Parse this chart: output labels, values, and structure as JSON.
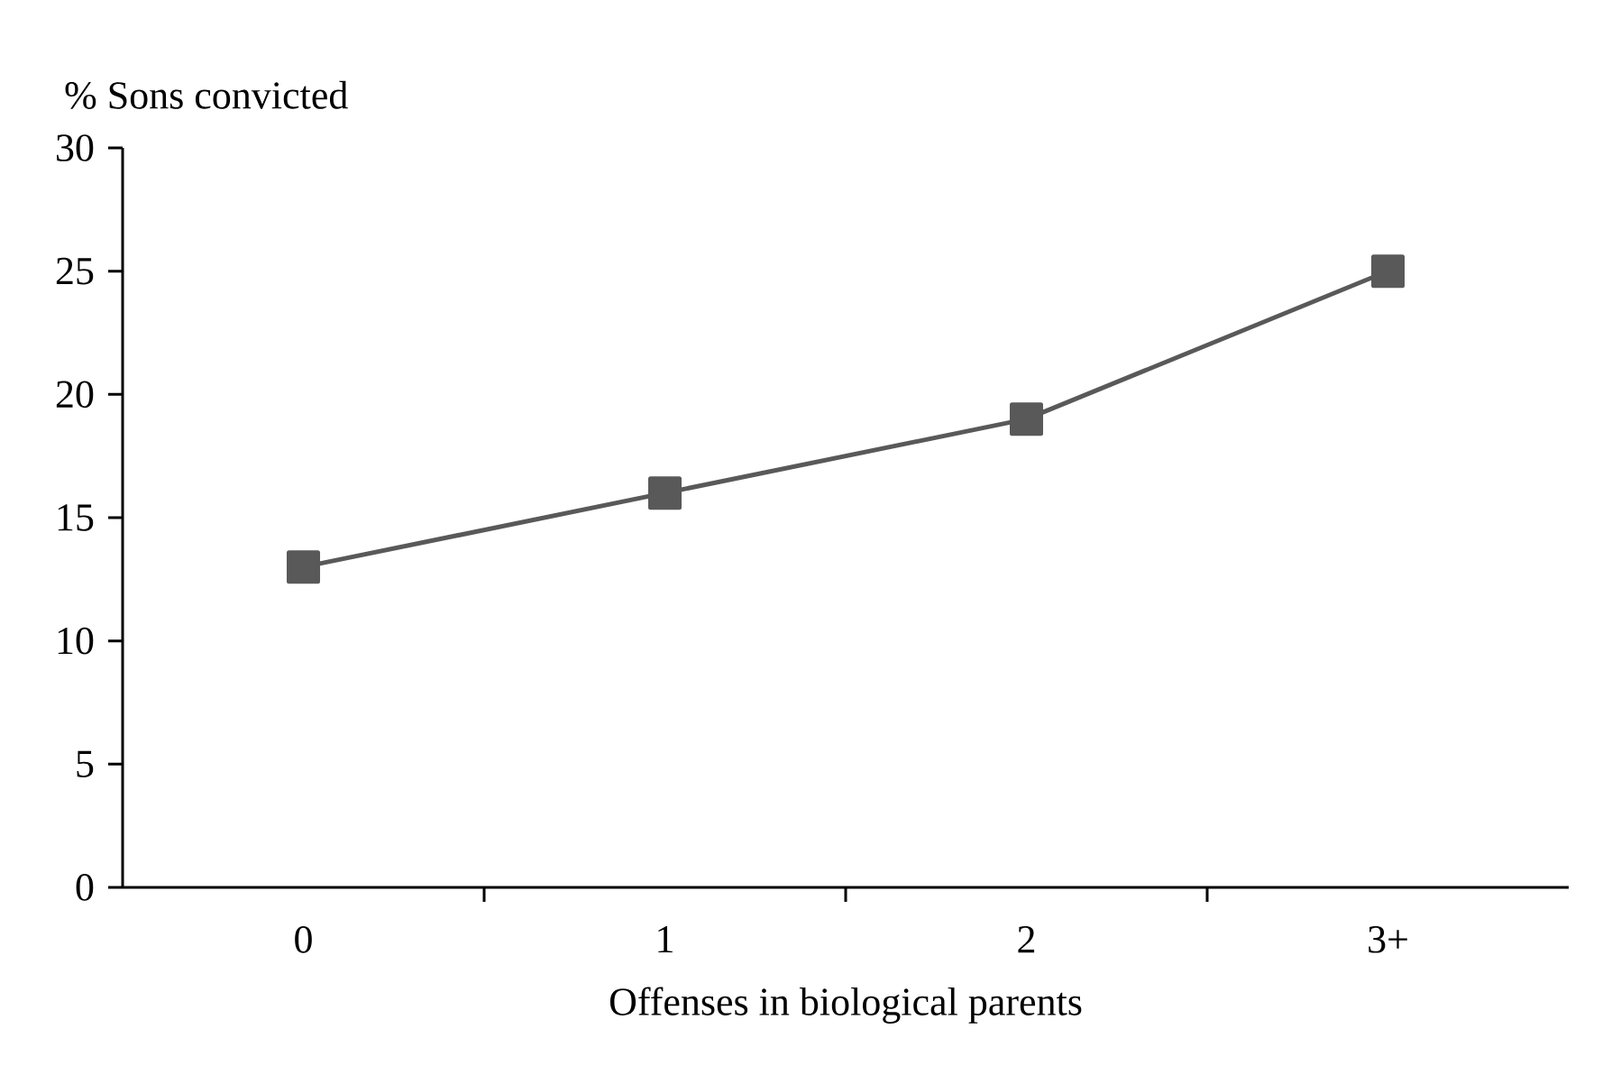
{
  "chart_data": {
    "type": "line",
    "ylabel": "% Sons convicted",
    "xlabel": "Offenses in biological parents",
    "categories": [
      "0",
      "1",
      "2",
      "3+"
    ],
    "values": [
      13,
      16,
      19,
      25
    ],
    "color": "#595959",
    "marker": "square",
    "ylim": [
      0,
      30
    ],
    "yticks": [
      0,
      5,
      10,
      15,
      20,
      25,
      30
    ]
  }
}
